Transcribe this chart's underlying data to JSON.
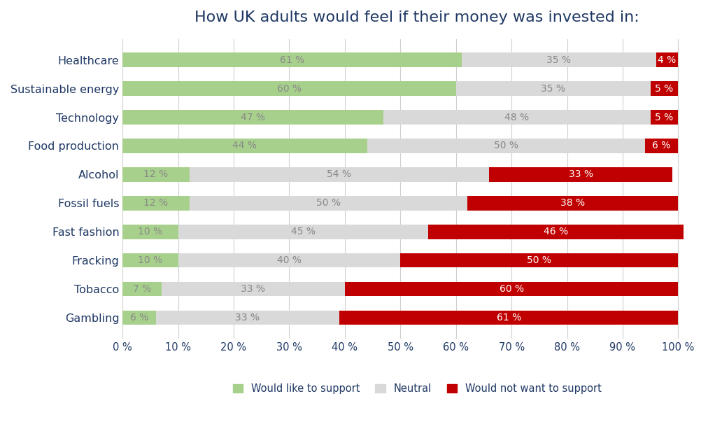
{
  "title": "How UK adults would feel if their money was invested in:",
  "categories": [
    "Healthcare",
    "Sustainable energy",
    "Technology",
    "Food production",
    "Alcohol",
    "Fossil fuels",
    "Fast fashion",
    "Fracking",
    "Tobacco",
    "Gambling"
  ],
  "support": [
    61,
    60,
    47,
    44,
    12,
    12,
    10,
    10,
    7,
    6
  ],
  "neutral": [
    35,
    35,
    48,
    50,
    54,
    50,
    45,
    40,
    33,
    33
  ],
  "oppose": [
    4,
    5,
    5,
    6,
    33,
    38,
    46,
    50,
    60,
    61
  ],
  "color_support": "#a8d08d",
  "color_neutral": "#d9d9d9",
  "color_oppose": "#c00000",
  "legend_labels": [
    "Would like to support",
    "Neutral",
    "Would not want to support"
  ],
  "title_color": "#1f3864",
  "label_color": "#1f3864",
  "tick_color": "#1f3864",
  "background_color": "#ffffff",
  "title_fontsize": 16,
  "label_fontsize": 11.5,
  "tick_fontsize": 10.5,
  "bar_label_fontsize": 10,
  "legend_fontsize": 10.5,
  "bar_height": 0.5
}
